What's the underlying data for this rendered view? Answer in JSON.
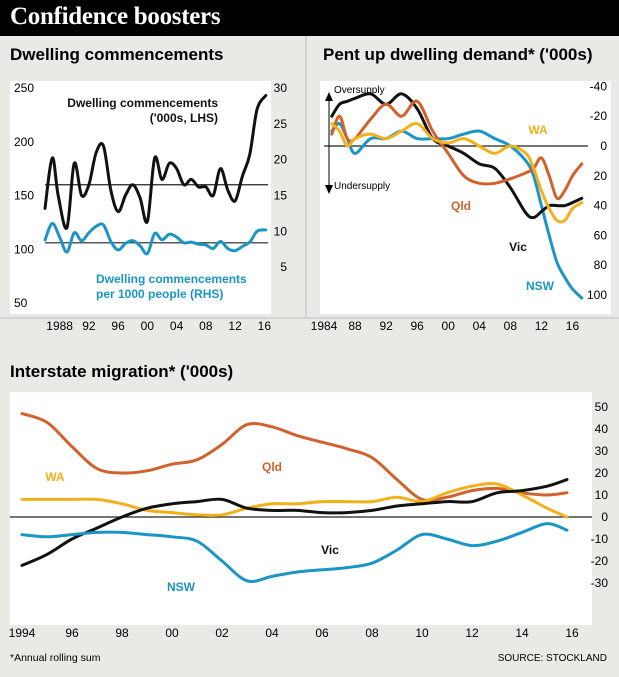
{
  "header": {
    "title": "Confidence boosters"
  },
  "panel1": {
    "title": "Dwelling commencements",
    "label_lhs_line1": "Dwelling commencements",
    "label_lhs_line2": "('000s, LHS)",
    "label_rhs_line1": "Dwelling commencements",
    "label_rhs_line2": "per 1000 people (RHS)"
  },
  "panel2": {
    "title": "Pent up dwelling demand* ('000s)",
    "oversupply": "Oversupply",
    "undersupply": "Undersupply"
  },
  "panel3": {
    "title": "Interstate migration* ('000s)"
  },
  "footnote": "*Annual rolling sum",
  "source": "SOURCE: STOCKLAND",
  "colors": {
    "black": "#111111",
    "blue": "#1a95c6",
    "orange": "#d2622b",
    "yellow": "#f3b01b",
    "background": "#ebe9e5",
    "gridline": "#bfbfbf"
  },
  "chart_data": [
    {
      "type": "line",
      "title": "Dwelling commencements",
      "x_ticks": [
        "1988",
        "92",
        "96",
        "00",
        "04",
        "08",
        "12",
        "16"
      ],
      "y_left_ticks": [
        "250",
        "200",
        "150",
        "100",
        "50"
      ],
      "y_right_ticks": [
        "30",
        "25",
        "20",
        "15",
        "10",
        "5"
      ],
      "ylim_left": [
        50,
        250
      ],
      "ylim_right": [
        0,
        30
      ],
      "grid": true,
      "series": [
        {
          "name": "Dwelling commencements ('000s, LHS)",
          "axis": "left",
          "color": "#111111",
          "x": [
            1986,
            1987,
            1987.8,
            1989,
            1990,
            1991,
            1992,
            1993,
            1994,
            1995,
            1996,
            1997,
            1998,
            1999,
            2000,
            2001,
            2002,
            2003,
            2004,
            2005,
            2006,
            2007,
            2008,
            2009,
            2010,
            2011,
            2012,
            2013,
            2014,
            2015,
            2016.2
          ],
          "y": [
            138,
            185,
            150,
            120,
            180,
            150,
            160,
            190,
            196,
            155,
            135,
            150,
            160,
            148,
            126,
            185,
            165,
            180,
            175,
            160,
            165,
            158,
            158,
            150,
            175,
            155,
            145,
            168,
            188,
            230,
            243
          ]
        },
        {
          "name": "Dwelling commencements per 1000 people (RHS)",
          "axis": "right",
          "color": "#1a95c6",
          "x": [
            1986,
            1987,
            1988,
            1989,
            1990,
            1991,
            1992,
            1993,
            1994,
            1995,
            1996,
            1997,
            1998,
            1999,
            2000,
            2001,
            2002,
            2003,
            2004,
            2005,
            2006,
            2007,
            2008,
            2009,
            2010,
            2011,
            2012,
            2013,
            2014,
            2015,
            2016.2
          ],
          "y": [
            8.8,
            11.1,
            9.2,
            7.1,
            9.8,
            8.7,
            9.8,
            10.7,
            10.9,
            8.6,
            7.4,
            8.3,
            8.7,
            8.0,
            6.9,
            9.7,
            8.8,
            9.6,
            9.2,
            8.4,
            8.5,
            8.2,
            8.1,
            7.6,
            8.6,
            7.6,
            7.3,
            7.9,
            8.5,
            10.0,
            10.2
          ]
        }
      ]
    },
    {
      "type": "line",
      "title": "Pent up dwelling demand* ('000s)",
      "x_ticks": [
        "1984",
        "88",
        "92",
        "96",
        "00",
        "04",
        "08",
        "12",
        "16"
      ],
      "y_right_ticks": [
        "-40",
        "-20",
        "0",
        "20",
        "40",
        "60",
        "80",
        "100"
      ],
      "ylim": [
        -45,
        110
      ],
      "y_inverted": true,
      "annotations": [
        "Oversupply",
        "Undersupply"
      ],
      "series": [
        {
          "name": "NSW",
          "color": "#1a95c6",
          "x": [
            1985,
            1986,
            1987,
            1988,
            1990,
            1992,
            1994,
            1996,
            1998,
            2000,
            2002,
            2004,
            2006,
            2008,
            2010,
            2011,
            2012,
            2013,
            2014,
            2015,
            2016,
            2017.2
          ],
          "y": [
            -10,
            -15,
            -5,
            5,
            -5,
            -5,
            -10,
            -5,
            -5,
            -5,
            -8,
            -10,
            -5,
            0,
            10,
            20,
            40,
            60,
            78,
            88,
            96,
            102
          ]
        },
        {
          "name": "Vic",
          "color": "#111111",
          "x": [
            1985,
            1986,
            1987,
            1988,
            1990,
            1992,
            1994,
            1996,
            1998,
            2000,
            2002,
            2004,
            2006,
            2008,
            2010,
            2011,
            2012,
            2013,
            2014,
            2015,
            2016,
            2017.2
          ],
          "y": [
            -20,
            -28,
            -30,
            -32,
            -35,
            -28,
            -35,
            -25,
            -5,
            0,
            5,
            12,
            15,
            28,
            45,
            48,
            44,
            40,
            40,
            40,
            38,
            35
          ]
        },
        {
          "name": "Qld",
          "color": "#d2622b",
          "x": [
            1985,
            1986,
            1987,
            1988,
            1990,
            1992,
            1994,
            1996,
            1998,
            2000,
            2002,
            2004,
            2006,
            2008,
            2010,
            2011,
            2012,
            2013,
            2014,
            2015,
            2016,
            2017.2
          ],
          "y": [
            -8,
            -20,
            -5,
            -5,
            -18,
            -28,
            -20,
            -30,
            -10,
            5,
            20,
            25,
            25,
            22,
            18,
            15,
            8,
            20,
            35,
            30,
            20,
            12
          ]
        },
        {
          "name": "WA",
          "color": "#f3b01b",
          "x": [
            1985,
            1986,
            1987,
            1988,
            1990,
            1992,
            1994,
            1996,
            1998,
            2000,
            2002,
            2004,
            2006,
            2008,
            2010,
            2011,
            2012,
            2013,
            2014,
            2015,
            2016,
            2017.2
          ],
          "y": [
            -15,
            -10,
            0,
            -5,
            -8,
            -5,
            -10,
            -15,
            -5,
            -2,
            -5,
            0,
            5,
            0,
            5,
            15,
            30,
            42,
            50,
            50,
            42,
            38
          ]
        }
      ]
    },
    {
      "type": "line",
      "title": "Interstate migration* ('000s)",
      "x_ticks": [
        "1994",
        "96",
        "98",
        "00",
        "02",
        "04",
        "06",
        "08",
        "10",
        "12",
        "14",
        "16"
      ],
      "y_right_ticks": [
        "50",
        "40",
        "30",
        "20",
        "10",
        "0",
        "-10",
        "-20",
        "-30"
      ],
      "ylim": [
        -32,
        52
      ],
      "grid": true,
      "series": [
        {
          "name": "Qld",
          "color": "#d2622b",
          "x": [
            1994,
            1995,
            1996,
            1997,
            1998,
            1999,
            2000,
            2001,
            2002,
            2003,
            2004,
            2005,
            2006,
            2007,
            2008,
            2009,
            2010,
            2011,
            2012,
            2013,
            2014,
            2015,
            2015.8
          ],
          "y": [
            47,
            43,
            32,
            22,
            20,
            21,
            24,
            26,
            33,
            42,
            41,
            37,
            34,
            31,
            27,
            17,
            8,
            9,
            12,
            13,
            11,
            10,
            11
          ]
        },
        {
          "name": "WA",
          "color": "#f3b01b",
          "x": [
            1994,
            1995,
            1996,
            1997,
            1998,
            1999,
            2000,
            2001,
            2002,
            2003,
            2004,
            2005,
            2006,
            2007,
            2008,
            2009,
            2010,
            2011,
            2012,
            2013,
            2014,
            2015,
            2015.8
          ],
          "y": [
            8,
            8,
            8,
            8,
            6,
            3,
            2,
            1,
            1,
            4,
            6,
            6,
            7,
            7,
            7,
            9,
            7,
            11,
            14,
            15,
            10,
            4,
            0
          ]
        },
        {
          "name": "Vic",
          "color": "#111111",
          "x": [
            1994,
            1995,
            1996,
            1997,
            1998,
            1999,
            2000,
            2001,
            2002,
            2003,
            2004,
            2005,
            2006,
            2007,
            2008,
            2009,
            2010,
            2011,
            2012,
            2013,
            2014,
            2015,
            2015.8
          ],
          "y": [
            -22,
            -17,
            -10,
            -5,
            0,
            4,
            6,
            7,
            8,
            4,
            3,
            3,
            2,
            2,
            3,
            5,
            6,
            7,
            7,
            11,
            12,
            14,
            17
          ]
        },
        {
          "name": "NSW",
          "color": "#1a95c6",
          "x": [
            1994,
            1995,
            1996,
            1997,
            1998,
            1999,
            2000,
            2001,
            2002,
            2003,
            2004,
            2005,
            2006,
            2007,
            2008,
            2009,
            2010,
            2011,
            2012,
            2013,
            2014,
            2015,
            2015.8
          ],
          "y": [
            -8,
            -9,
            -8,
            -7,
            -7,
            -8,
            -9,
            -11,
            -20,
            -29,
            -27,
            -25,
            -24,
            -23,
            -21,
            -15,
            -8,
            -10,
            -13,
            -11,
            -7,
            -3,
            -6
          ]
        }
      ]
    }
  ]
}
